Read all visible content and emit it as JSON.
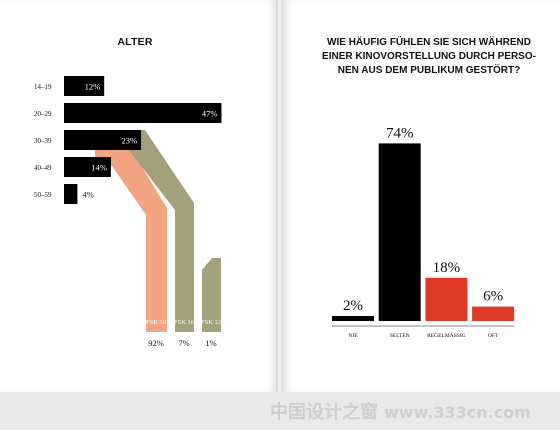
{
  "chart_data": [
    {
      "type": "bar",
      "orientation": "horizontal",
      "title": "ALTER",
      "categories": [
        "14–19",
        "20–29",
        "30–39",
        "40–49",
        "50–59"
      ],
      "values": [
        12,
        47,
        23,
        14,
        4
      ],
      "value_labels": [
        "12%",
        "47%",
        "23%",
        "14%",
        "4%"
      ],
      "unit": "%",
      "bar_color": "#000000",
      "flows": [
        {
          "name": "FSK 18",
          "value_label": "92%",
          "color": "#f2a482"
        },
        {
          "name": "FSK 16",
          "value_label": "7%",
          "color": "#a3a07c"
        },
        {
          "name": "FSK 12",
          "value_label": "1%",
          "color": "#a3a07c"
        }
      ]
    },
    {
      "type": "bar",
      "title_lines": [
        "WIE HÄUFIG FÜHLEN SIE SICH WÄHREND",
        "EINER KINOVORSTELLUNG DURCH PERSO-",
        "NEN AUS DEM PUBLIKUM GESTÖRT?"
      ],
      "categories": [
        "NIE",
        "SELTEN",
        "REGELMÄSSIG",
        "OFT"
      ],
      "values": [
        2,
        74,
        18,
        6
      ],
      "value_labels": [
        "2%",
        "74%",
        "18%",
        "6%"
      ],
      "unit": "%",
      "colors": [
        "#000000",
        "#000000",
        "#e03a26",
        "#e03a26"
      ]
    }
  ],
  "watermark": {
    "text": "中国设计之窗",
    "url": "www.333cn.com"
  }
}
